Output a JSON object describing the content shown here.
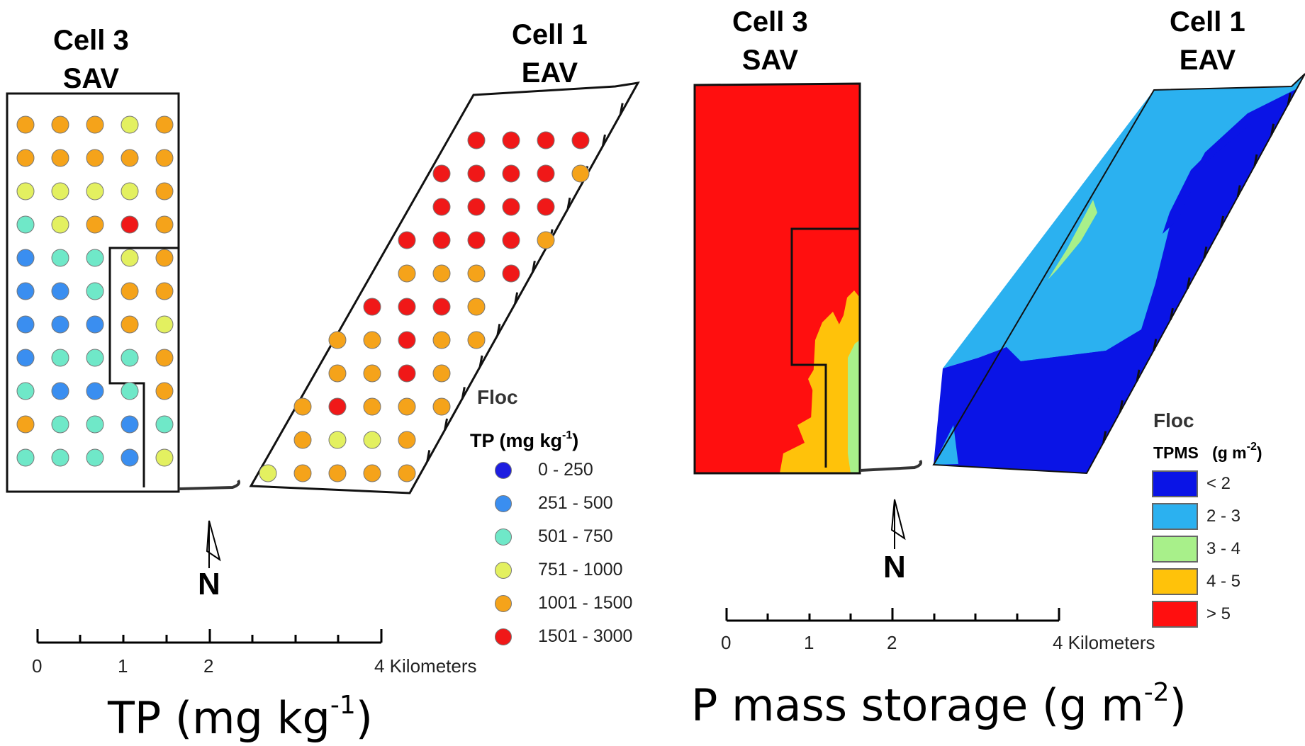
{
  "colors": {
    "blue_dark": "#1d1de0",
    "blue_mid": "#3a8ef0",
    "aqua": "#6fe8c8",
    "yellow_green": "#e3f060",
    "orange": "#f5a31a",
    "red": "#f01818",
    "map_dark_blue": "#0a14e6",
    "map_light_blue": "#2bb1f0",
    "map_light_green": "#a8f08a",
    "map_gold": "#ffc20a",
    "map_red": "#ff0f0f"
  },
  "left": {
    "cell3": {
      "line1": "Cell 3",
      "line2": "SAV"
    },
    "cell1": {
      "line1": "Cell 1",
      "line2": "EAV"
    },
    "legend": {
      "title": "Floc",
      "subtitle_main": "TP (mg kg",
      "subtitle_sup": "-1",
      "subtitle_end": ")",
      "items": [
        {
          "label": "0 - 250",
          "color": "#1d1de0"
        },
        {
          "label": "251 - 500",
          "color": "#3a8ef0"
        },
        {
          "label": "501 - 750",
          "color": "#6fe8c8"
        },
        {
          "label": "751 - 1000",
          "color": "#e3f060"
        },
        {
          "label": "1001 - 1500",
          "color": "#f5a31a"
        },
        {
          "label": "1501 - 3000",
          "color": "#f01818"
        }
      ]
    },
    "north_letter": "N",
    "scale": {
      "t0": "0",
      "t1": "1",
      "t2": "2",
      "t4": "4 Kilometers"
    },
    "title_main": "TP (mg kg",
    "title_sup": "-1",
    "title_end": ")",
    "cell3_grid": [
      [
        "orange",
        "orange",
        "orange",
        "yellow_green",
        "orange"
      ],
      [
        "orange",
        "orange",
        "orange",
        "orange",
        "orange"
      ],
      [
        "yellow_green",
        "yellow_green",
        "yellow_green",
        "yellow_green",
        "orange"
      ],
      [
        "aqua",
        "yellow_green",
        "orange",
        "red",
        "orange"
      ],
      [
        "blue_mid",
        "aqua",
        "aqua",
        "yellow_green",
        "orange"
      ],
      [
        "blue_mid",
        "blue_mid",
        "aqua",
        "orange",
        "orange"
      ],
      [
        "blue_mid",
        "blue_mid",
        "blue_mid",
        "orange",
        "yellow_green"
      ],
      [
        "blue_mid",
        "aqua",
        "aqua",
        "aqua",
        "orange"
      ],
      [
        "aqua",
        "blue_mid",
        "blue_mid",
        "aqua",
        "orange"
      ],
      [
        "orange",
        "aqua",
        "aqua",
        "blue_mid",
        "aqua"
      ],
      [
        "aqua",
        "aqua",
        "aqua",
        "blue_mid",
        "yellow_green"
      ]
    ],
    "cell1_grid": [
      [
        null,
        null,
        null,
        null,
        null,
        null,
        "red",
        "red",
        "red",
        "red"
      ],
      [
        null,
        null,
        null,
        null,
        null,
        "red",
        "red",
        "red",
        "red",
        "orange"
      ],
      [
        null,
        null,
        null,
        null,
        null,
        "red",
        "red",
        "red",
        "red",
        null
      ],
      [
        null,
        null,
        null,
        null,
        "red",
        "red",
        "red",
        "red",
        "orange",
        null
      ],
      [
        null,
        null,
        null,
        null,
        "orange",
        "orange",
        "orange",
        "red",
        null,
        null
      ],
      [
        null,
        null,
        null,
        "red",
        "red",
        "red",
        "orange",
        null,
        null,
        null
      ],
      [
        null,
        null,
        "orange",
        "orange",
        "red",
        "orange",
        "orange",
        null,
        null,
        null
      ],
      [
        null,
        null,
        "orange",
        "orange",
        "red",
        "orange",
        null,
        null,
        null,
        null
      ],
      [
        null,
        "orange",
        "red",
        "orange",
        "orange",
        "orange",
        null,
        null,
        null,
        null
      ],
      [
        null,
        "orange",
        "yellow_green",
        "yellow_green",
        "orange",
        null,
        null,
        null,
        null,
        null
      ],
      [
        "yellow_green",
        "orange",
        "orange",
        "orange",
        "orange",
        null,
        null,
        null,
        null,
        null
      ]
    ]
  },
  "right": {
    "cell3": {
      "line1": "Cell 3",
      "line2": "SAV"
    },
    "cell1": {
      "line1": "Cell 1",
      "line2": "EAV"
    },
    "legend": {
      "title": "Floc",
      "subtitle_a": "TPMS",
      "subtitle_b": "(g m",
      "subtitle_sup": "-2",
      "subtitle_end": ")",
      "items": [
        {
          "label": "< 2",
          "color": "#0a14e6"
        },
        {
          "label": "2 - 3",
          "color": "#2bb1f0"
        },
        {
          "label": "3 - 4",
          "color": "#a8f08a"
        },
        {
          "label": "4 - 5",
          "color": "#ffc20a"
        },
        {
          "label": "> 5",
          "color": "#ff0f0f"
        }
      ]
    },
    "north_letter": "N",
    "scale": {
      "t0": "0",
      "t1": "1",
      "t2": "2",
      "t4": "4 Kilometers"
    },
    "title_main": "P mass storage (g m",
    "title_sup": "-2",
    "title_end": ")"
  }
}
